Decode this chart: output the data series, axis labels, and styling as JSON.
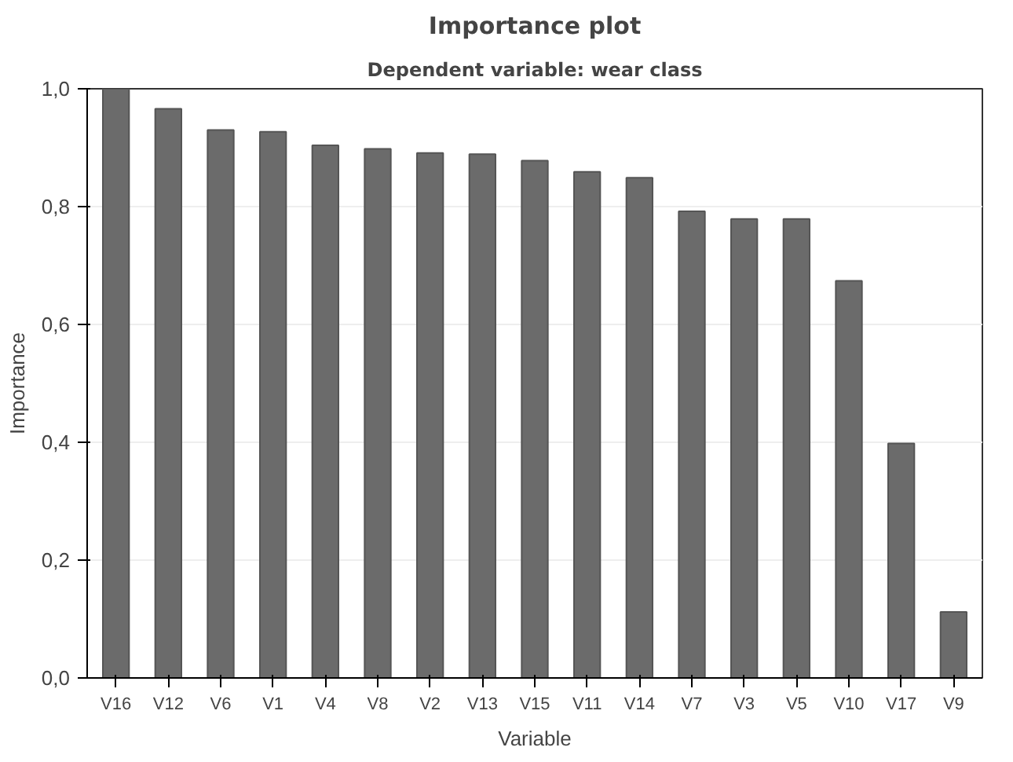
{
  "chart_data": {
    "type": "bar",
    "title": "Importance plot",
    "subtitle": "Dependent variable: wear class",
    "xlabel": "Variable",
    "ylabel": "Importance",
    "categories": [
      "V16",
      "V12",
      "V6",
      "V1",
      "V4",
      "V8",
      "V2",
      "V13",
      "V15",
      "V11",
      "V14",
      "V7",
      "V3",
      "V5",
      "V10",
      "V17",
      "V9"
    ],
    "values": [
      1.0,
      0.966,
      0.93,
      0.927,
      0.904,
      0.898,
      0.891,
      0.889,
      0.878,
      0.859,
      0.849,
      0.792,
      0.779,
      0.779,
      0.674,
      0.398,
      0.112
    ],
    "color": "#6b6b6b",
    "ylim": [
      0,
      1
    ],
    "yticks": [
      {
        "value": 0,
        "label": "0,0"
      },
      {
        "value": 0.2,
        "label": "0,2"
      },
      {
        "value": 0.4,
        "label": "0,4"
      },
      {
        "value": 0.6,
        "label": "0,6"
      },
      {
        "value": 0.8,
        "label": "0,8"
      },
      {
        "value": 1,
        "label": "1,0"
      }
    ],
    "grid": "y"
  }
}
